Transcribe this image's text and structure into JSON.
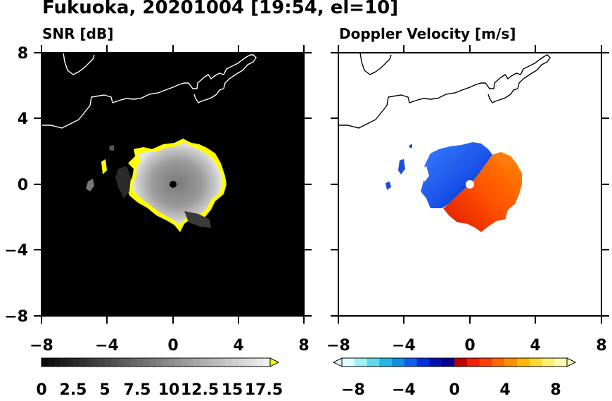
{
  "figure": {
    "title": "Fukuoka, 20201004 [19:54, el=10]"
  },
  "panels": {
    "snr": {
      "title": "SNR [dB]",
      "x_ticks": [
        "−8",
        "−4",
        "0",
        "4",
        "8"
      ],
      "y_ticks": [
        "8",
        "4",
        "0",
        "−4",
        "−8"
      ],
      "colorbar": {
        "ticks": [
          "0",
          "2.5",
          "5",
          "7.5",
          "10",
          "12.5",
          "15",
          "17.5"
        ],
        "range": [
          0,
          18
        ],
        "cmap": "grayscale",
        "extend_color": "#ffff00"
      }
    },
    "doppler": {
      "title": "Doppler Velocity [m/s]",
      "x_ticks": [
        "−8",
        "−4",
        "0",
        "4",
        "8"
      ],
      "colorbar": {
        "ticks": [
          "−8",
          "−4",
          "0",
          "4",
          "8"
        ],
        "range": [
          -10,
          10
        ],
        "cmap": "blue-to-red diverging",
        "low_colors": [
          "#e0ffff",
          "#a0f0f8",
          "#60d8f0",
          "#20b8e8",
          "#1090e0",
          "#1060f0",
          "#0030e0",
          "#0010b0",
          "#000090"
        ],
        "high_colors": [
          "#c00000",
          "#f02000",
          "#ff4000",
          "#ff6a00",
          "#ff9000",
          "#ffb800",
          "#ffd830",
          "#ffef70",
          "#fffbb0"
        ]
      }
    }
  },
  "map": {
    "extent_km": [
      -8,
      8
    ],
    "radar_site": [
      0,
      0
    ],
    "echo_radius_km": 3
  }
}
